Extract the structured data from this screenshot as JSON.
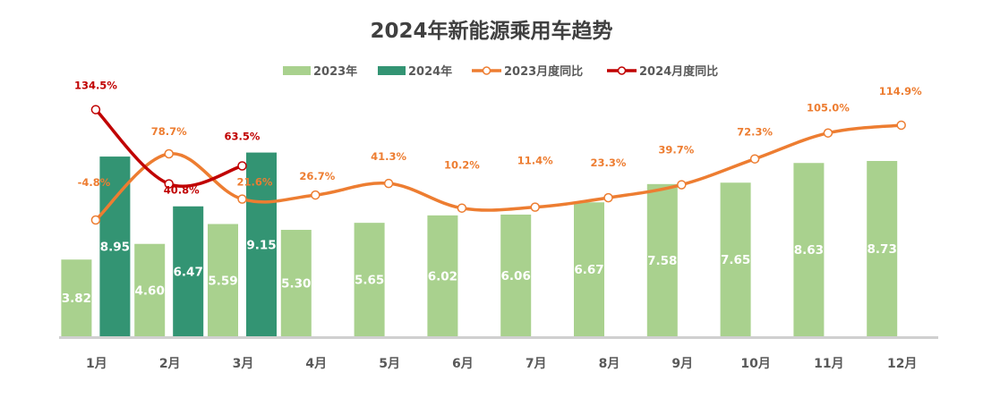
{
  "chart_data": {
    "type": "bar",
    "title": "2024年新能源乘用车趋势",
    "xlabel": "",
    "ylabel": "",
    "categories": [
      "1月",
      "2月",
      "3月",
      "4月",
      "5月",
      "6月",
      "7月",
      "8月",
      "9月",
      "10月",
      "11月",
      "12月"
    ],
    "series": [
      {
        "name": "2023年",
        "type": "bar",
        "axis": "primary",
        "color": "#A9D18E",
        "values": [
          3.82,
          4.6,
          5.59,
          5.3,
          5.65,
          6.02,
          6.06,
          6.67,
          7.58,
          7.65,
          8.63,
          8.73
        ],
        "labels": [
          "3.82",
          "4.60",
          "5.59",
          "5.30",
          "5.65",
          "6.02",
          "6.06",
          "6.67",
          "7.58",
          "7.65",
          "8.63",
          "8.73"
        ]
      },
      {
        "name": "2024年",
        "type": "bar",
        "axis": "primary",
        "color": "#339473",
        "values": [
          8.95,
          6.47,
          9.15,
          null,
          null,
          null,
          null,
          null,
          null,
          null,
          null,
          null
        ],
        "labels": [
          "8.95",
          "6.47",
          "9.15"
        ]
      },
      {
        "name": "2023月度同比",
        "type": "line",
        "axis": "secondary",
        "color": "#ED7D31",
        "unit": "%",
        "values": [
          -4.8,
          78.7,
          21.6,
          26.7,
          41.3,
          10.2,
          11.4,
          23.3,
          39.7,
          72.3,
          105.0,
          114.9
        ],
        "labels": [
          "-4.8%",
          "78.7%",
          "21.6%",
          "26.7%",
          "41.3%",
          "10.2%",
          "11.4%",
          "23.3%",
          "39.7%",
          "72.3%",
          "105.0%",
          "114.9%"
        ]
      },
      {
        "name": "2024月度同比",
        "type": "line",
        "axis": "secondary",
        "color": "#C00000",
        "unit": "%",
        "values": [
          134.5,
          40.8,
          63.5,
          null,
          null,
          null,
          null,
          null,
          null,
          null,
          null,
          null
        ],
        "labels": [
          "134.5%",
          "40.8%",
          "63.5%"
        ]
      }
    ],
    "ylim": [
      0,
      10
    ],
    "y2lim": [
      -100,
      140
    ],
    "grid": false,
    "axes_visible": false,
    "legend_position": "top-center"
  }
}
